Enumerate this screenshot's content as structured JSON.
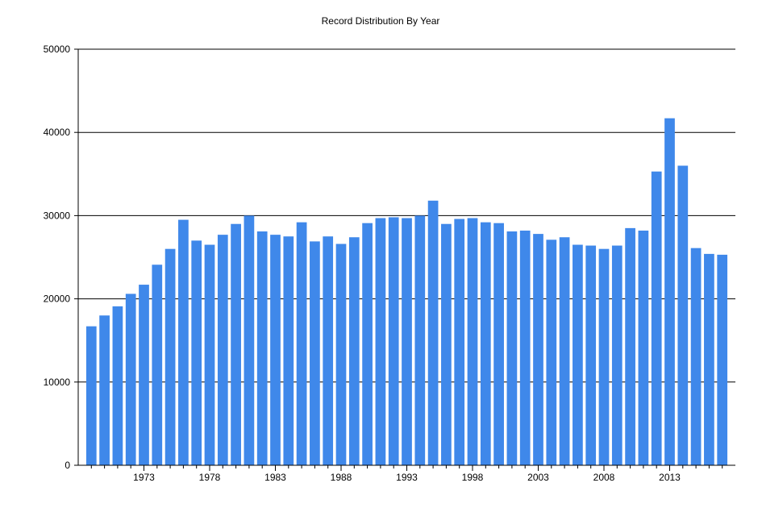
{
  "chart_data": {
    "type": "bar",
    "title": "Record Distribution By Year",
    "xlabel": "",
    "ylabel": "",
    "ylim": [
      0,
      50000
    ],
    "y_ticks": [
      0,
      10000,
      20000,
      30000,
      40000,
      50000
    ],
    "x_tick_labels": [
      1973,
      1978,
      1983,
      1988,
      1993,
      1998,
      2003,
      2008,
      2013
    ],
    "grid": true,
    "legend": "none",
    "bar_color": "#3f88ea",
    "categories": [
      1969,
      1970,
      1971,
      1972,
      1973,
      1974,
      1975,
      1976,
      1977,
      1978,
      1979,
      1980,
      1981,
      1982,
      1983,
      1984,
      1985,
      1986,
      1987,
      1988,
      1989,
      1990,
      1991,
      1992,
      1993,
      1994,
      1995,
      1996,
      1997,
      1998,
      1999,
      2000,
      2001,
      2002,
      2003,
      2004,
      2005,
      2006,
      2007,
      2008,
      2009,
      2010,
      2011,
      2012,
      2013,
      2014,
      2015,
      2016,
      2017
    ],
    "values": [
      16700,
      18000,
      19100,
      20600,
      21700,
      24100,
      26000,
      29500,
      27000,
      26500,
      27700,
      29000,
      30000,
      28100,
      27700,
      27500,
      29200,
      26900,
      27500,
      26600,
      27400,
      29100,
      29700,
      29800,
      29700,
      30000,
      31800,
      29000,
      29600,
      29700,
      29200,
      29100,
      28100,
      28200,
      27800,
      27100,
      27400,
      26500,
      26400,
      26000,
      26400,
      28500,
      28200,
      35300,
      41700,
      36000,
      26100,
      25400,
      25300
    ]
  }
}
